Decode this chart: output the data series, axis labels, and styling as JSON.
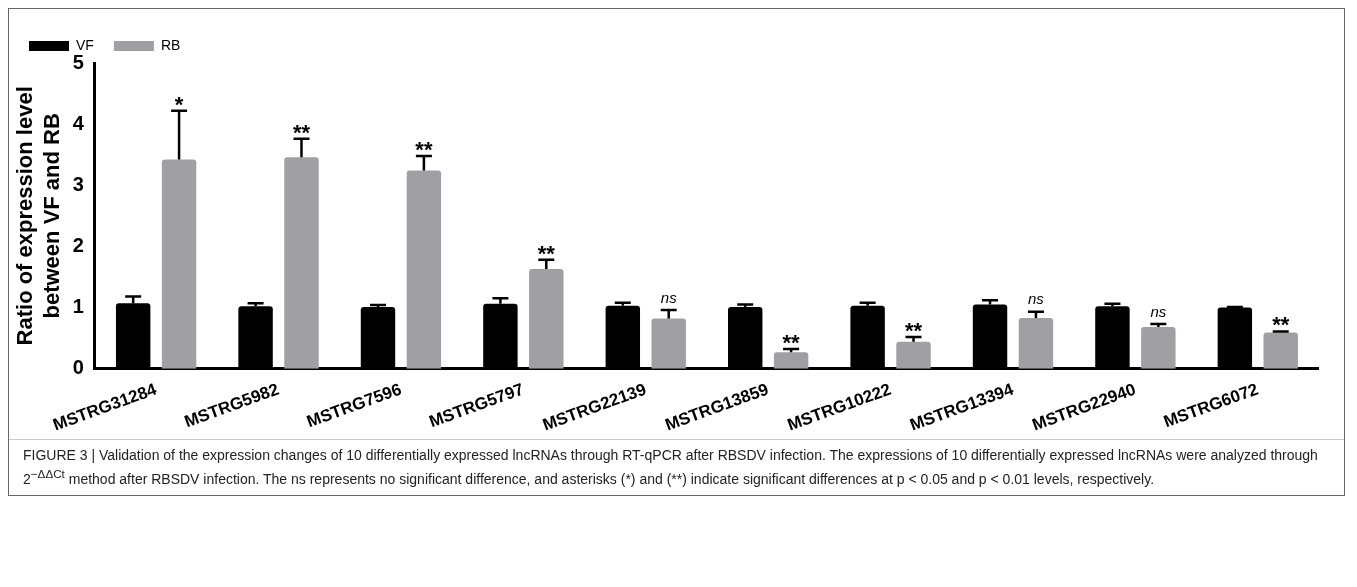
{
  "chart_data": {
    "type": "bar",
    "ylabel": "Ratio of expression level\nbetween VF and RB",
    "categories": [
      "MSTRG31284",
      "MSTRG5982",
      "MSTRG7596",
      "MSTRG5797",
      "MSTRG22139",
      "MSTRG13859",
      "MSTRG10222",
      "MSTRG13394",
      "MSTRG22940",
      "MSTRG6072"
    ],
    "series": [
      {
        "name": "VF",
        "color": "#000000",
        "values": [
          1.07,
          1.02,
          1.01,
          1.06,
          1.03,
          1.01,
          1.03,
          1.05,
          1.02,
          1.0
        ],
        "errors": [
          [
            1.07,
            1.18
          ],
          [
            1.02,
            1.07
          ],
          [
            1.01,
            1.04
          ],
          [
            1.06,
            1.15
          ],
          [
            1.03,
            1.08
          ],
          [
            1.01,
            1.05
          ],
          [
            1.03,
            1.08
          ],
          [
            1.05,
            1.12
          ],
          [
            1.02,
            1.06
          ],
          [
            1.0,
            1.01
          ]
        ]
      },
      {
        "name": "RB",
        "color": "#a0a0a4",
        "values": [
          3.42,
          3.46,
          3.24,
          1.63,
          0.82,
          0.27,
          0.44,
          0.83,
          0.68,
          0.59
        ],
        "errors": [
          [
            3.42,
            4.22
          ],
          [
            3.46,
            3.76
          ],
          [
            3.24,
            3.48
          ],
          [
            1.63,
            1.78
          ],
          [
            0.82,
            0.96
          ],
          [
            0.27,
            0.32
          ],
          [
            0.44,
            0.52
          ],
          [
            0.83,
            0.93
          ],
          [
            0.68,
            0.73
          ],
          [
            0.59,
            0.61
          ]
        ]
      }
    ],
    "ylim": [
      0,
      5
    ],
    "yticks": [
      0,
      1,
      2,
      3,
      4,
      5
    ],
    "grid": false,
    "legend": "top left",
    "annotations": [
      "*",
      "**",
      "**",
      "**",
      "ns",
      "**",
      "**",
      "ns",
      "ns",
      "**",
      "FIGURE 3 | Validation of the expression changes of 10 differentially expressed lncRNAs through RT-qPCR after RBSDV infection. The expressions of 10 differentially expressed lncRNAs were analyzed through 2$^{−ΔΔCt}$ method after RBSDV infection. The ns represents no significant difference, and asterisks (*) and (**) indicate significant differences at p < 0.05 and p < 0.01 levels, respectively."
    ]
  }
}
